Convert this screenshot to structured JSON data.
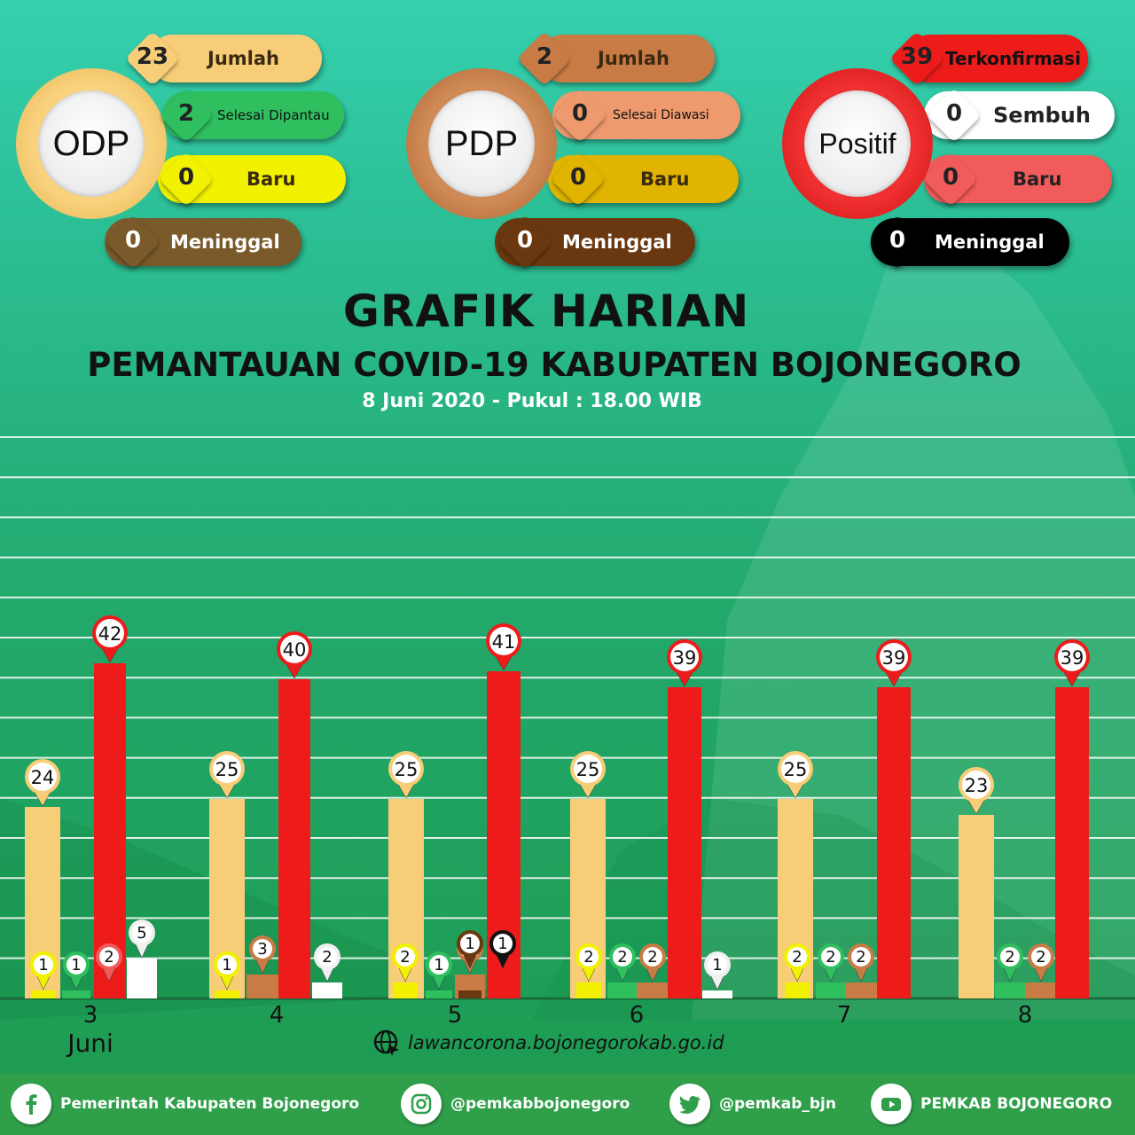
{
  "colors": {
    "jumlah_odp": "#f8cd78",
    "selesai_dipantau": "#2fbf5f",
    "baru_odp": "#f1f100",
    "meninggal_odp": "#7a5a2a",
    "jumlah_pdp": "#c97b45",
    "selesai_diawasi": "#ee9a6e",
    "baru_pdp": "#e0b400",
    "meninggal_pdp": "#6a3810",
    "terkonfirmasi": "#ee1b1b",
    "sembuh": "#ffffff",
    "baru_positif": "#f25b5b",
    "meninggal_positif": "#000000"
  },
  "odp": {
    "title": "ODP",
    "items": [
      {
        "value": "23",
        "label": "Jumlah"
      },
      {
        "value": "2",
        "label": "Selesai Dipantau"
      },
      {
        "value": "0",
        "label": "Baru"
      },
      {
        "value": "0",
        "label": "Meninggal"
      }
    ]
  },
  "pdp": {
    "title": "PDP",
    "items": [
      {
        "value": "2",
        "label": "Jumlah"
      },
      {
        "value": "0",
        "label": "Selesai Diawasi"
      },
      {
        "value": "0",
        "label": "Baru"
      },
      {
        "value": "0",
        "label": "Meninggal"
      }
    ]
  },
  "positif": {
    "title": "Positif",
    "items": [
      {
        "value": "39",
        "label": "Terkonfirmasi"
      },
      {
        "value": "0",
        "label": "Sembuh"
      },
      {
        "value": "0",
        "label": "Baru"
      },
      {
        "value": "0",
        "label": "Meninggal"
      }
    ]
  },
  "header": {
    "title": "GRAFIK HARIAN",
    "subtitle": "PEMANTAUAN COVID-19 KABUPATEN BOJONEGORO",
    "date": "8 Juni 2020 - Pukul : 18.00 WIB"
  },
  "chart_data": {
    "type": "bar",
    "categories": [
      "3",
      "4",
      "5",
      "6",
      "7",
      "8"
    ],
    "month_label": "Juni",
    "grid": true,
    "groups": [
      {
        "day": "3",
        "bars": [
          {
            "series": "odp_jumlah",
            "value": 24
          },
          {
            "series": "odp_baru",
            "value": 1
          },
          {
            "series": "selesai_dipantau",
            "value": 1
          },
          {
            "series": "baru_positif",
            "value": 2
          },
          {
            "series": "positif_terkonfirmasi",
            "value": 42
          },
          {
            "series": "sembuh",
            "value": 5
          }
        ]
      },
      {
        "day": "4",
        "bars": [
          {
            "series": "odp_jumlah",
            "value": 25
          },
          {
            "series": "odp_baru",
            "value": 1
          },
          {
            "series": "pdp_jumlah",
            "value": 3
          },
          {
            "series": "positif_terkonfirmasi",
            "value": 40
          },
          {
            "series": "sembuh",
            "value": 2
          }
        ]
      },
      {
        "day": "5",
        "bars": [
          {
            "series": "odp_jumlah",
            "value": 25
          },
          {
            "series": "odp_baru",
            "value": 2
          },
          {
            "series": "selesai_dipantau",
            "value": 1
          },
          {
            "series": "pdp_jumlah",
            "value": 3
          },
          {
            "series": "pdp_meninggal",
            "value": 1
          },
          {
            "series": "positif_meninggal",
            "value": 1
          },
          {
            "series": "positif_terkonfirmasi",
            "value": 41
          }
        ]
      },
      {
        "day": "6",
        "bars": [
          {
            "series": "odp_jumlah",
            "value": 25
          },
          {
            "series": "odp_baru",
            "value": 2
          },
          {
            "series": "selesai_dipantau",
            "value": 2
          },
          {
            "series": "pdp_jumlah",
            "value": 2
          },
          {
            "series": "positif_terkonfirmasi",
            "value": 39
          },
          {
            "series": "sembuh",
            "value": 1
          }
        ]
      },
      {
        "day": "7",
        "bars": [
          {
            "series": "odp_jumlah",
            "value": 25
          },
          {
            "series": "odp_baru",
            "value": 2
          },
          {
            "series": "selesai_dipantau",
            "value": 2
          },
          {
            "series": "pdp_jumlah",
            "value": 2
          },
          {
            "series": "positif_terkonfirmasi",
            "value": 39
          }
        ]
      },
      {
        "day": "8",
        "bars": [
          {
            "series": "odp_jumlah",
            "value": 23
          },
          {
            "series": "selesai_dipantau",
            "value": 2
          },
          {
            "series": "pdp_jumlah",
            "value": 2
          },
          {
            "series": "positif_terkonfirmasi",
            "value": 39
          }
        ]
      }
    ]
  },
  "website": "lawancorona.bojonegorokab.go.id",
  "footer": {
    "facebook": "Pemerintah Kabupaten Bojonegoro",
    "instagram": "@pemkabbojonegoro",
    "twitter": "@pemkab_bjn",
    "youtube": "PEMKAB BOJONEGORO"
  }
}
